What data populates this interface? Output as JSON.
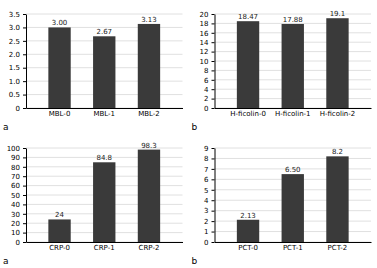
{
  "chart_data": [
    {
      "type": "bar",
      "categories": [
        "MBL-0",
        "MBL-1",
        "MBL-2"
      ],
      "values": [
        3.0,
        2.67,
        3.13
      ],
      "value_labels": [
        "3.00",
        "2.67",
        "3.13"
      ],
      "data_labels": true,
      "color": "#3a3a3a",
      "ylim": [
        0,
        3.5
      ],
      "yticks": [
        0,
        0.5,
        {
          "value": 1,
          "label": "1.0"
        },
        1.5,
        {
          "value": 2,
          "label": "2.0"
        },
        2.5,
        {
          "value": 3,
          "label": "3.0"
        },
        3.5
      ],
      "grid": true,
      "annotations": [
        "a"
      ]
    },
    {
      "type": "bar",
      "categories": [
        "H-ficolin-0",
        "H-ficolin-1",
        "H-ficolin-2"
      ],
      "values": [
        18.47,
        17.88,
        19.1
      ],
      "value_labels": [
        "18.47",
        "17.88",
        "19.1"
      ],
      "data_labels": true,
      "color": "#3a3a3a",
      "ylim": [
        0,
        20
      ],
      "yticks": [
        0,
        2,
        4,
        6,
        8,
        10,
        12,
        14,
        16,
        18,
        20
      ],
      "grid": true,
      "annotations": [
        "b"
      ]
    },
    {
      "type": "bar",
      "categories": [
        "CRP-0",
        "CRP-1",
        "CRP-2"
      ],
      "values": [
        24,
        84.8,
        98.3
      ],
      "value_labels": [
        "24",
        "84.8",
        "98.3"
      ],
      "data_labels": true,
      "color": "#3a3a3a",
      "ylim": [
        0,
        100
      ],
      "yticks": [
        0,
        10,
        20,
        30,
        40,
        50,
        60,
        70,
        80,
        90,
        100
      ],
      "grid": true,
      "annotations": [
        "a"
      ]
    },
    {
      "type": "bar",
      "categories": [
        "PCT-0",
        "PCT-1",
        "PCT-2"
      ],
      "values": [
        2.13,
        6.5,
        8.2
      ],
      "value_labels": [
        "2.13",
        "6.50",
        "8.2"
      ],
      "data_labels": true,
      "color": "#3a3a3a",
      "ylim": [
        0,
        9
      ],
      "yticks": [
        0,
        1,
        2,
        3,
        4,
        5,
        6,
        7,
        8,
        9
      ],
      "grid": true,
      "annotations": [
        "b"
      ]
    }
  ]
}
